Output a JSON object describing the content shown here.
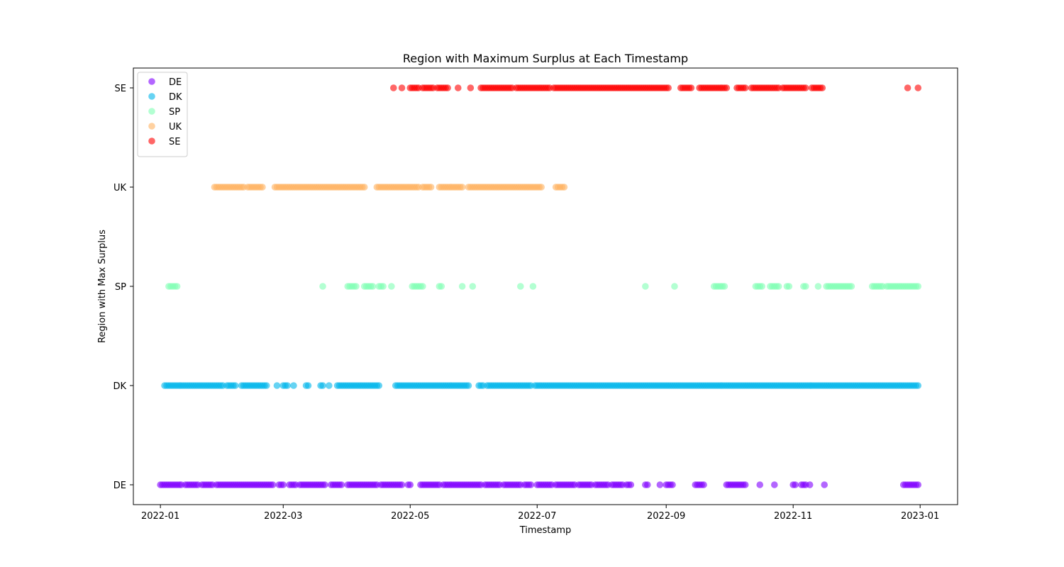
{
  "chart_data": {
    "type": "scatter",
    "title": "Region with Maximum Surplus at Each Timestamp",
    "xlabel": "Timestamp",
    "ylabel": "Region with Max Surplus",
    "categories": [
      "DE",
      "DK",
      "SP",
      "UK",
      "SE"
    ],
    "x_ticks": [
      "2022-01",
      "2022-03",
      "2022-05",
      "2022-07",
      "2022-09",
      "2022-11",
      "2023-01"
    ],
    "xlim": [
      "2021-12-19",
      "2023-01-19"
    ],
    "legend_position": "upper-left",
    "grid": false,
    "series": [
      {
        "name": "DE",
        "color": "#8000ff",
        "segments": [
          [
            "2022-01-01",
            "2022-01-11"
          ],
          [
            "2022-01-13",
            "2022-01-19"
          ],
          [
            "2022-01-21",
            "2022-01-26"
          ],
          [
            "2022-01-28",
            "2022-02-24"
          ],
          [
            "2022-02-27",
            "2022-03-01"
          ],
          [
            "2022-03-04",
            "2022-03-07"
          ],
          [
            "2022-03-09",
            "2022-03-21"
          ],
          [
            "2022-03-24",
            "2022-03-29"
          ],
          [
            "2022-04-01",
            "2022-04-15"
          ],
          [
            "2022-04-17",
            "2022-04-27"
          ],
          [
            "2022-04-30",
            "2022-05-01"
          ],
          [
            "2022-05-06",
            "2022-05-15"
          ],
          [
            "2022-05-17",
            "2022-06-04"
          ],
          [
            "2022-06-06",
            "2022-06-13"
          ],
          [
            "2022-06-15",
            "2022-06-23"
          ],
          [
            "2022-06-25",
            "2022-06-28"
          ],
          [
            "2022-07-01",
            "2022-07-08"
          ],
          [
            "2022-07-10",
            "2022-07-19"
          ],
          [
            "2022-07-21",
            "2022-07-27"
          ],
          [
            "2022-07-29",
            "2022-08-04"
          ],
          [
            "2022-08-06",
            "2022-08-11"
          ],
          [
            "2022-08-13",
            "2022-08-15"
          ],
          [
            "2022-08-22",
            "2022-08-23"
          ],
          [
            "2022-08-29",
            "2022-08-29"
          ],
          [
            "2022-09-01",
            "2022-09-04"
          ],
          [
            "2022-09-15",
            "2022-09-19"
          ],
          [
            "2022-09-30",
            "2022-10-04"
          ],
          [
            "2022-10-05",
            "2022-10-09"
          ],
          [
            "2022-10-16",
            "2022-10-16"
          ],
          [
            "2022-10-23",
            "2022-10-23"
          ],
          [
            "2022-11-01",
            "2022-11-02"
          ],
          [
            "2022-11-05",
            "2022-11-07"
          ],
          [
            "2022-11-09",
            "2022-11-09"
          ],
          [
            "2022-11-16",
            "2022-11-16"
          ],
          [
            "2022-12-24",
            "2022-12-31"
          ]
        ]
      },
      {
        "name": "DK",
        "color": "#00b5eb",
        "segments": [
          [
            "2022-01-03",
            "2022-01-31"
          ],
          [
            "2022-02-02",
            "2022-02-06"
          ],
          [
            "2022-02-09",
            "2022-02-14"
          ],
          [
            "2022-02-15",
            "2022-02-19"
          ],
          [
            "2022-02-20",
            "2022-02-21"
          ],
          [
            "2022-02-26",
            "2022-02-26"
          ],
          [
            "2022-03-01",
            "2022-03-03"
          ],
          [
            "2022-03-06",
            "2022-03-06"
          ],
          [
            "2022-03-12",
            "2022-03-13"
          ],
          [
            "2022-03-19",
            "2022-03-20"
          ],
          [
            "2022-03-23",
            "2022-03-23"
          ],
          [
            "2022-03-27",
            "2022-04-16"
          ],
          [
            "2022-04-24",
            "2022-05-29"
          ],
          [
            "2022-06-03",
            "2022-06-05"
          ],
          [
            "2022-06-07",
            "2022-06-28"
          ],
          [
            "2022-06-30",
            "2022-12-31"
          ]
        ]
      },
      {
        "name": "SP",
        "color": "#80ffb4",
        "segments": [
          [
            "2022-01-05",
            "2022-01-09"
          ],
          [
            "2022-03-20",
            "2022-03-20"
          ],
          [
            "2022-04-01",
            "2022-04-05"
          ],
          [
            "2022-04-09",
            "2022-04-13"
          ],
          [
            "2022-04-16",
            "2022-04-18"
          ],
          [
            "2022-04-22",
            "2022-04-22"
          ],
          [
            "2022-05-02",
            "2022-05-07"
          ],
          [
            "2022-05-15",
            "2022-05-16"
          ],
          [
            "2022-05-26",
            "2022-05-26"
          ],
          [
            "2022-05-31",
            "2022-05-31"
          ],
          [
            "2022-06-23",
            "2022-06-23"
          ],
          [
            "2022-06-29",
            "2022-06-29"
          ],
          [
            "2022-08-22",
            "2022-08-22"
          ],
          [
            "2022-09-05",
            "2022-09-05"
          ],
          [
            "2022-09-24",
            "2022-09-29"
          ],
          [
            "2022-10-14",
            "2022-10-17"
          ],
          [
            "2022-10-21",
            "2022-10-25"
          ],
          [
            "2022-10-29",
            "2022-10-30"
          ],
          [
            "2022-11-06",
            "2022-11-07"
          ],
          [
            "2022-11-13",
            "2022-11-13"
          ],
          [
            "2022-11-17",
            "2022-11-29"
          ],
          [
            "2022-12-09",
            "2022-12-14"
          ],
          [
            "2022-12-16",
            "2022-12-31"
          ]
        ]
      },
      {
        "name": "UK",
        "color": "#ffb360",
        "segments": [
          [
            "2022-01-27",
            "2022-02-05"
          ],
          [
            "2022-02-06",
            "2022-02-10"
          ],
          [
            "2022-02-12",
            "2022-02-19"
          ],
          [
            "2022-02-25",
            "2022-03-20"
          ],
          [
            "2022-03-21",
            "2022-04-09"
          ],
          [
            "2022-04-15",
            "2022-05-05"
          ],
          [
            "2022-05-07",
            "2022-05-11"
          ],
          [
            "2022-05-15",
            "2022-05-26"
          ],
          [
            "2022-05-29",
            "2022-06-23"
          ],
          [
            "2022-06-24",
            "2022-07-03"
          ],
          [
            "2022-07-10",
            "2022-07-14"
          ]
        ]
      },
      {
        "name": "SE",
        "color": "#ff0000",
        "segments": [
          [
            "2022-04-23",
            "2022-04-23"
          ],
          [
            "2022-04-27",
            "2022-04-27"
          ],
          [
            "2022-05-01",
            "2022-05-05"
          ],
          [
            "2022-05-07",
            "2022-05-12"
          ],
          [
            "2022-05-14",
            "2022-05-19"
          ],
          [
            "2022-05-24",
            "2022-05-24"
          ],
          [
            "2022-05-30",
            "2022-05-30"
          ],
          [
            "2022-06-04",
            "2022-06-19"
          ],
          [
            "2022-06-21",
            "2022-06-30"
          ],
          [
            "2022-07-01",
            "2022-07-07"
          ],
          [
            "2022-07-09",
            "2022-08-31"
          ],
          [
            "2022-09-01",
            "2022-09-02"
          ],
          [
            "2022-09-08",
            "2022-09-13"
          ],
          [
            "2022-09-17",
            "2022-09-23"
          ],
          [
            "2022-09-24",
            "2022-09-30"
          ],
          [
            "2022-10-05",
            "2022-10-09"
          ],
          [
            "2022-10-12",
            "2022-10-25"
          ],
          [
            "2022-10-27",
            "2022-11-07"
          ],
          [
            "2022-11-10",
            "2022-11-15"
          ],
          [
            "2022-12-26",
            "2022-12-26"
          ],
          [
            "2022-12-31",
            "2022-12-31"
          ]
        ]
      }
    ]
  }
}
